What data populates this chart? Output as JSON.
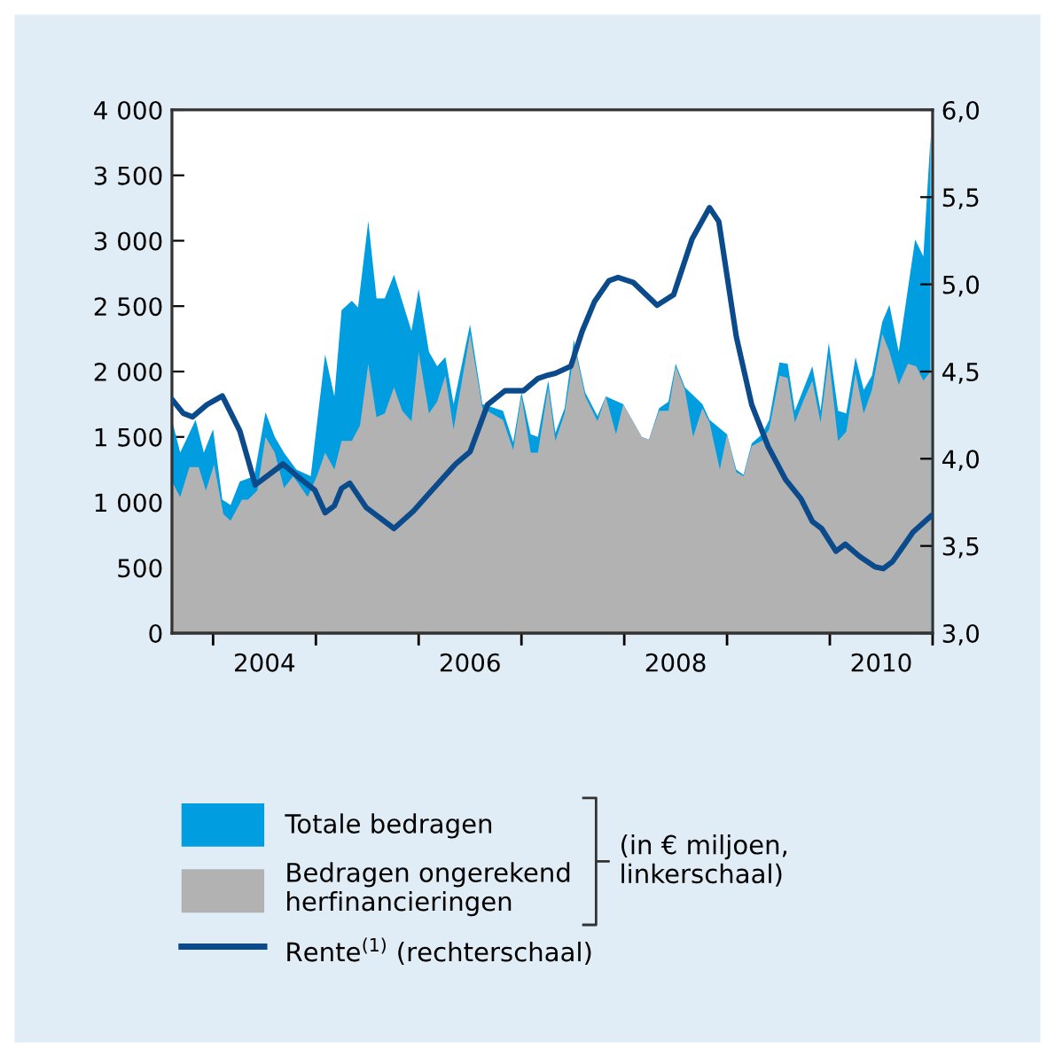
{
  "chart_data": {
    "type": "area",
    "series": [
      {
        "name": "Totale bedragen",
        "color": "#009de0",
        "x": [
          2003.6,
          2003.68,
          2003.83,
          2003.91,
          2004.0,
          2004.09,
          2004.17,
          2004.26,
          2004.4,
          2004.51,
          2004.6,
          2004.69,
          2004.81,
          2004.95,
          2005.09,
          2005.18,
          2005.25,
          2005.35,
          2005.41,
          2005.51,
          2005.59,
          2005.67,
          2005.76,
          2005.93,
          2006.0,
          2006.1,
          2006.18,
          2006.26,
          2006.34,
          2006.5,
          2006.62,
          2006.82,
          2006.92,
          2007.0,
          2007.09,
          2007.16,
          2007.26,
          2007.33,
          2007.42,
          2007.51,
          2007.62,
          2007.74,
          2007.82,
          2007.92,
          2007.99,
          2008.17,
          2008.24,
          2008.34,
          2008.43,
          2008.5,
          2008.59,
          2008.67,
          2008.76,
          2008.83,
          2008.93,
          2009.0,
          2009.09,
          2009.16,
          2009.24,
          2009.34,
          2009.41,
          2009.51,
          2009.59,
          2009.66,
          2009.75,
          2009.83,
          2009.91,
          2009.99,
          2010.08,
          2010.16,
          2010.25,
          2010.33,
          2010.41,
          2010.51,
          2010.58,
          2010.67,
          2010.83,
          2010.91,
          2010.98
        ],
        "values": [
          1630,
          1380,
          1630,
          1380,
          1560,
          1020,
          980,
          1160,
          1200,
          1690,
          1500,
          1380,
          1250,
          1200,
          2130,
          1810,
          2470,
          2540,
          2490,
          3150,
          2560,
          2560,
          2740,
          2310,
          2630,
          2150,
          2040,
          2110,
          1750,
          2360,
          1750,
          1700,
          1460,
          1840,
          1520,
          1500,
          1930,
          1530,
          1720,
          2240,
          1840,
          1660,
          1810,
          null,
          1750,
          1500,
          1480,
          1720,
          1770,
          2060,
          1880,
          null,
          1750,
          1630,
          null,
          1520,
          1250,
          1210,
          1450,
          1520,
          1630,
          2070,
          2060,
          1700,
          1880,
          2040,
          1700,
          2220,
          1700,
          1680,
          2110,
          1860,
          1970,
          2380,
          2510,
          2150,
          3010,
          2880,
          3800
        ]
      },
      {
        "name": "Bedragen ongerekend herfinancieringen",
        "color": "#b2b2b2",
        "x": [
          2003.6,
          2003.68,
          2003.77,
          2003.86,
          2003.93,
          2004.01,
          2004.1,
          2004.17,
          2004.28,
          2004.34,
          2004.43,
          2004.51,
          2004.6,
          2004.69,
          2004.78,
          2004.92,
          2005.01,
          2005.09,
          2005.18,
          2005.25,
          2005.35,
          2005.43,
          2005.51,
          2005.59,
          2005.67,
          2005.76,
          2005.84,
          2005.93,
          2006.0,
          2006.1,
          2006.18,
          2006.26,
          2006.34,
          2006.5,
          2006.62,
          2006.82,
          2006.92,
          2007.0,
          2007.09,
          2007.16,
          2007.26,
          2007.33,
          2007.42,
          2007.52,
          2007.62,
          2007.74,
          2007.82,
          2007.92,
          2007.99,
          2008.17,
          2008.24,
          2008.34,
          2008.43,
          2008.5,
          2008.59,
          2008.67,
          2008.76,
          2008.83,
          2008.93,
          2009.0,
          2009.09,
          2009.16,
          2009.24,
          2009.34,
          2009.41,
          2009.51,
          2009.59,
          2009.66,
          2009.75,
          2009.83,
          2009.91,
          2009.99,
          2010.08,
          2010.16,
          2010.25,
          2010.33,
          2010.41,
          2010.51,
          2010.58,
          2010.67,
          2010.76,
          2010.84,
          2010.91,
          2010.98
        ],
        "values": [
          1160,
          1040,
          1270,
          1270,
          1090,
          1290,
          910,
          860,
          1020,
          1020,
          1090,
          1500,
          1380,
          1110,
          1200,
          1040,
          1200,
          1380,
          1250,
          1470,
          1470,
          1590,
          2060,
          1650,
          1680,
          1880,
          1700,
          1620,
          2150,
          1680,
          1770,
          1970,
          1560,
          2290,
          1720,
          1630,
          1400,
          1810,
          1380,
          1380,
          1880,
          1470,
          1680,
          2180,
          1810,
          1620,
          1810,
          1520,
          1750,
          1500,
          1480,
          1700,
          1700,
          2040,
          1860,
          1500,
          1720,
          1610,
          1250,
          1520,
          1230,
          1200,
          1430,
          1470,
          1560,
          1970,
          1950,
          1610,
          1790,
          1930,
          1610,
          2110,
          1470,
          1540,
          1990,
          1680,
          1860,
          2290,
          2150,
          1900,
          2060,
          2040,
          1930,
          2000
        ]
      },
      {
        "name": "Rente$^{(1)}$ (rechterschaal)",
        "type": "line",
        "axis": "y2",
        "color": "#0b4a8b",
        "x": [
          2003.6,
          2003.71,
          2003.8,
          2003.94,
          2004.09,
          2004.26,
          2004.41,
          2004.57,
          2004.68,
          2004.86,
          2004.99,
          2005.09,
          2005.18,
          2005.25,
          2005.33,
          2005.49,
          2005.76,
          2005.95,
          2006.13,
          2006.36,
          2006.5,
          2006.67,
          2006.84,
          2007.02,
          2007.16,
          2007.26,
          2007.33,
          2007.48,
          2007.59,
          2007.71,
          2007.85,
          2007.94,
          2008.09,
          2008.32,
          2008.48,
          2008.66,
          2008.83,
          2008.92,
          2009.09,
          2009.24,
          2009.4,
          2009.57,
          2009.72,
          2009.83,
          2009.92,
          2010.06,
          2010.15,
          2010.29,
          2010.44,
          2010.52,
          2010.61,
          2010.81,
          2010.98
        ],
        "values": [
          4.34,
          4.26,
          4.24,
          4.31,
          4.36,
          4.16,
          3.85,
          3.92,
          3.97,
          3.88,
          3.82,
          3.69,
          3.73,
          3.83,
          3.86,
          3.72,
          3.6,
          3.7,
          3.82,
          3.97,
          4.04,
          4.31,
          4.39,
          4.39,
          4.46,
          4.48,
          4.49,
          4.53,
          4.73,
          4.9,
          5.02,
          5.04,
          5.01,
          4.88,
          4.94,
          5.26,
          5.44,
          5.36,
          4.7,
          4.31,
          4.07,
          3.88,
          3.77,
          3.64,
          3.6,
          3.47,
          3.51,
          3.44,
          3.38,
          3.37,
          3.41,
          3.58,
          3.67
        ]
      }
    ],
    "xlim": [
      2003.6,
      2011.0
    ],
    "xticks": [
      {
        "value": 2004,
        "label": null
      },
      {
        "value": 2004.5,
        "label": "2004"
      },
      {
        "value": 2005,
        "label": null
      },
      {
        "value": 2006,
        "label": null
      },
      {
        "value": 2006.5,
        "label": "2006"
      },
      {
        "value": 2007,
        "label": null
      },
      {
        "value": 2008,
        "label": null
      },
      {
        "value": 2008.5,
        "label": "2008"
      },
      {
        "value": 2009,
        "label": null
      },
      {
        "value": 2010,
        "label": null
      },
      {
        "value": 2010.5,
        "label": "2010"
      },
      {
        "value": 2011,
        "label": null
      }
    ],
    "ylim": [
      0,
      4000
    ],
    "yticks": [
      0,
      500,
      {
        "value": 1000,
        "label": "1 000"
      },
      {
        "value": 1500,
        "label": "1 500"
      },
      {
        "value": 2000,
        "label": "2 000"
      },
      {
        "value": 2500,
        "label": "2 500"
      },
      {
        "value": 3000,
        "label": "3 000"
      },
      {
        "value": 3500,
        "label": "3 500"
      },
      {
        "value": 4000,
        "label": "4 000"
      }
    ],
    "y2lim": [
      3.0,
      6.0
    ],
    "y2ticks": [
      {
        "value": 3.0,
        "label": "3,0"
      },
      {
        "value": 3.5,
        "label": "3,5"
      },
      {
        "value": 4.0,
        "label": "4,0"
      },
      {
        "value": 4.5,
        "label": "4,5"
      },
      {
        "value": 5.0,
        "label": "5,0"
      },
      {
        "value": 5.5,
        "label": "5,5"
      },
      {
        "value": 6.0,
        "label": "6,0"
      }
    ],
    "legend": "bottom",
    "annotations": [
      "(in € miljoen,\nlinkerschaal)"
    ]
  }
}
